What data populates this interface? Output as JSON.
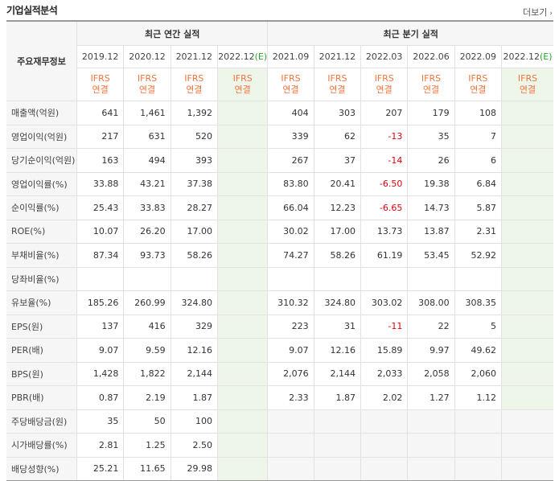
{
  "header": {
    "title": "기업실적분석",
    "more": "더보기"
  },
  "table": {
    "row_header": "주요재무정보",
    "annual_label": "최근 연간 실적",
    "quarter_label": "최근 분기 실적",
    "annual_periods": [
      "2019.12",
      "2020.12",
      "2021.12",
      "2022.12(E)"
    ],
    "quarter_periods": [
      "2021.09",
      "2021.12",
      "2022.03",
      "2022.06",
      "2022.09",
      "2022.12(E)"
    ],
    "basis": "IFRS\n연결",
    "rows": [
      {
        "label": "매출액(억원)",
        "annual": [
          "641",
          "1,461",
          "1,392",
          ""
        ],
        "quarter": [
          "404",
          "303",
          "207",
          "179",
          "108",
          ""
        ]
      },
      {
        "label": "영업이익(억원)",
        "annual": [
          "217",
          "631",
          "520",
          ""
        ],
        "quarter": [
          "339",
          "62",
          "-13",
          "35",
          "7",
          ""
        ]
      },
      {
        "label": "당기순이익(억원)",
        "annual": [
          "163",
          "494",
          "393",
          ""
        ],
        "quarter": [
          "267",
          "37",
          "-14",
          "26",
          "6",
          ""
        ]
      },
      {
        "label": "영업이익률(%)",
        "annual": [
          "33.88",
          "43.21",
          "37.38",
          ""
        ],
        "quarter": [
          "83.80",
          "20.41",
          "-6.50",
          "19.38",
          "6.84",
          ""
        ]
      },
      {
        "label": "순이익률(%)",
        "annual": [
          "25.43",
          "33.83",
          "28.27",
          ""
        ],
        "quarter": [
          "66.04",
          "12.23",
          "-6.65",
          "14.73",
          "5.87",
          ""
        ]
      },
      {
        "label": "ROE(%)",
        "annual": [
          "10.07",
          "26.20",
          "17.00",
          ""
        ],
        "quarter": [
          "30.02",
          "17.00",
          "13.73",
          "13.87",
          "2.31",
          ""
        ]
      },
      {
        "label": "부채비율(%)",
        "annual": [
          "87.34",
          "93.73",
          "58.26",
          ""
        ],
        "quarter": [
          "74.27",
          "58.26",
          "61.19",
          "53.45",
          "52.92",
          ""
        ]
      },
      {
        "label": "당좌비율(%)",
        "annual": [
          "",
          "",
          "",
          ""
        ],
        "quarter": [
          "",
          "",
          "",
          "",
          "",
          ""
        ]
      },
      {
        "label": "유보율(%)",
        "annual": [
          "185.26",
          "260.99",
          "324.80",
          ""
        ],
        "quarter": [
          "310.32",
          "324.80",
          "303.02",
          "308.00",
          "308.35",
          ""
        ]
      },
      {
        "label": "EPS(원)",
        "annual": [
          "137",
          "416",
          "329",
          ""
        ],
        "quarter": [
          "223",
          "31",
          "-11",
          "22",
          "5",
          ""
        ]
      },
      {
        "label": "PER(배)",
        "annual": [
          "9.07",
          "9.59",
          "12.16",
          ""
        ],
        "quarter": [
          "9.07",
          "12.16",
          "15.89",
          "9.97",
          "49.62",
          ""
        ]
      },
      {
        "label": "BPS(원)",
        "annual": [
          "1,428",
          "1,822",
          "2,144",
          ""
        ],
        "quarter": [
          "2,076",
          "2,144",
          "2,033",
          "2,058",
          "2,060",
          ""
        ]
      },
      {
        "label": "PBR(배)",
        "annual": [
          "0.87",
          "2.19",
          "1.87",
          ""
        ],
        "quarter": [
          "2.33",
          "1.87",
          "2.02",
          "1.27",
          "1.12",
          ""
        ]
      },
      {
        "label": "주당배당금(원)",
        "annual": [
          "35",
          "50",
          "100",
          ""
        ],
        "quarter": [
          "",
          "",
          "",
          "",
          "",
          ""
        ]
      },
      {
        "label": "시가배당률(%)",
        "annual": [
          "2.81",
          "1.25",
          "2.50",
          ""
        ],
        "quarter": [
          "",
          "",
          "",
          "",
          "",
          ""
        ]
      },
      {
        "label": "배당성향(%)",
        "annual": [
          "25.21",
          "11.65",
          "29.98",
          ""
        ],
        "quarter": [
          "",
          "",
          "",
          "",
          "",
          ""
        ]
      }
    ]
  },
  "colors": {
    "ifrs": "#f0743e",
    "negative": "#e0000d",
    "estimate_bg": "#eef6e9",
    "estimate_text": "#2ba52b"
  }
}
